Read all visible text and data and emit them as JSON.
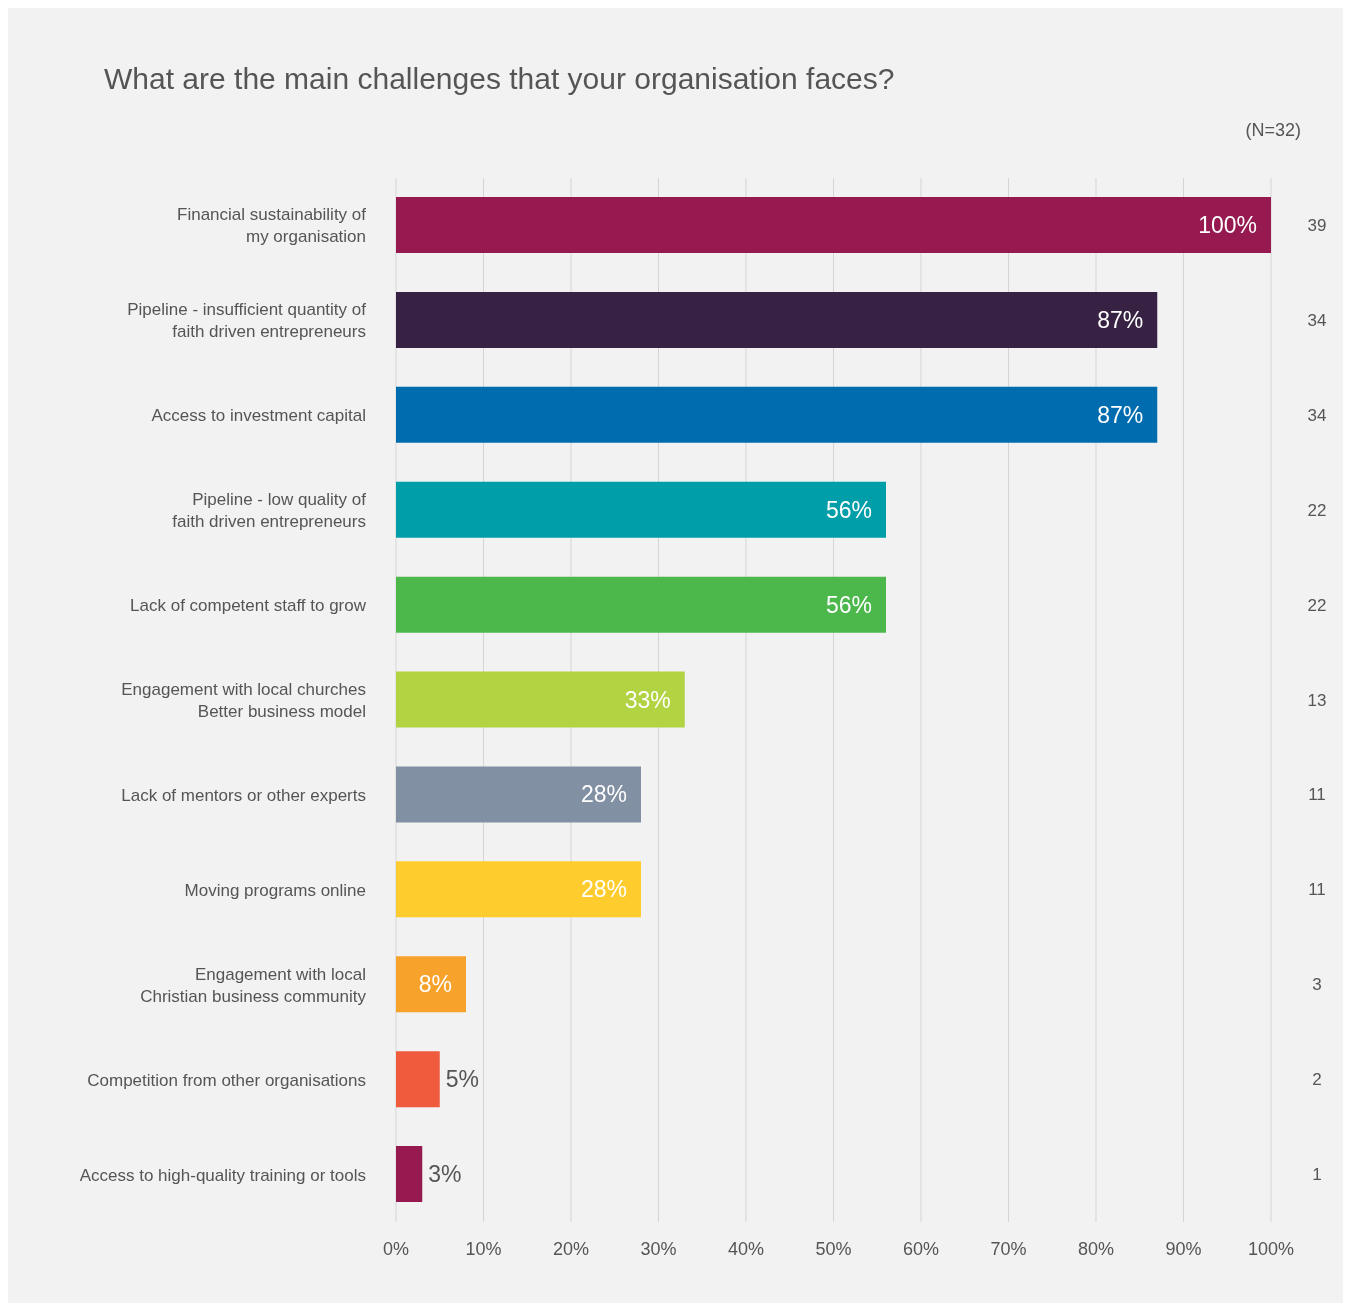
{
  "chart_data": {
    "type": "bar",
    "orientation": "horizontal",
    "title": "What are the main challenges that your organisation faces?",
    "subtitle": "(N=32)",
    "categories": [
      "Financial sustainability of\nmy organisation",
      "Pipeline - insufficient quantity of\nfaith driven entrepreneurs",
      "Access to investment capital",
      "Pipeline - low quality of\nfaith driven entrepreneurs",
      "Lack of competent staff to grow",
      "Engagement with local churches\nBetter business model",
      "Lack of mentors or other experts",
      "Moving programs online",
      "Engagement with local\nChristian business community",
      "Competition from other organisations",
      "Access to high-quality training or tools"
    ],
    "values": [
      100,
      87,
      87,
      56,
      56,
      33,
      28,
      28,
      8,
      5,
      3
    ],
    "value_labels": [
      "100%",
      "87%",
      "87%",
      "56%",
      "56%",
      "33%",
      "28%",
      "28%",
      "8%",
      "5%",
      "3%"
    ],
    "colors": [
      "#961a4f",
      "#372244",
      "#006cb0",
      "#009ea9",
      "#4cb84c",
      "#b2d342",
      "#8290a4",
      "#ffcc2e",
      "#f7a22a",
      "#f05a3d",
      "#961a4f"
    ],
    "xlim": [
      0,
      100
    ],
    "xticks": [
      {
        "value": 0,
        "label": "0%"
      },
      {
        "value": 10,
        "label": "10%"
      },
      {
        "value": 20,
        "label": "20%"
      },
      {
        "value": 30,
        "label": "30%"
      },
      {
        "value": 40,
        "label": "40%"
      },
      {
        "value": 50,
        "label": "50%"
      },
      {
        "value": 60,
        "label": "60%"
      },
      {
        "value": 70,
        "label": "70%"
      },
      {
        "value": 80,
        "label": "80%"
      },
      {
        "value": 90,
        "label": "90%"
      },
      {
        "value": 100,
        "label": "100%"
      }
    ],
    "grid": "x",
    "annotations": [
      "39",
      "34",
      "34",
      "22",
      "22",
      "13",
      "11",
      "11",
      "3",
      "2",
      "1"
    ]
  }
}
